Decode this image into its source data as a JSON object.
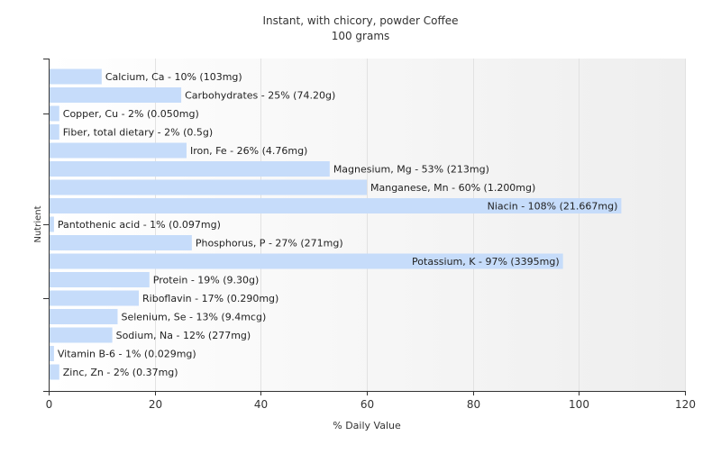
{
  "chart_data": {
    "type": "bar",
    "orientation": "horizontal",
    "title": "Instant, with chicory, powder Coffee",
    "subtitle": "100 grams",
    "xlabel": "% Daily Value",
    "ylabel": "Nutrient",
    "xlim": [
      0,
      120
    ],
    "xticks": [
      "0",
      "20",
      "40",
      "60",
      "80",
      "100",
      "120"
    ],
    "grid": true,
    "bar_color": "#c6dcfa",
    "categories": [
      "Calcium, Ca",
      "Carbohydrates",
      "Copper, Cu",
      "Fiber, total dietary",
      "Iron, Fe",
      "Magnesium, Mg",
      "Manganese, Mn",
      "Niacin",
      "Pantothenic acid",
      "Phosphorus, P",
      "Potassium, K",
      "Protein",
      "Riboflavin",
      "Selenium, Se",
      "Sodium, Na",
      "Vitamin B-6",
      "Zinc, Zn"
    ],
    "values": [
      10,
      25,
      2,
      2,
      26,
      53,
      60,
      108,
      1,
      27,
      97,
      19,
      17,
      13,
      12,
      1,
      2
    ],
    "labels": [
      "Calcium, Ca - 10% (103mg)",
      "Carbohydrates - 25% (74.20g)",
      "Copper, Cu - 2% (0.050mg)",
      "Fiber, total dietary - 2% (0.5g)",
      "Iron, Fe - 26% (4.76mg)",
      "Magnesium, Mg - 53% (213mg)",
      "Manganese, Mn - 60% (1.200mg)",
      "Niacin - 108% (21.667mg)",
      "Pantothenic acid - 1% (0.097mg)",
      "Phosphorus, P - 27% (271mg)",
      "Potassium, K - 97% (3395mg)",
      "Protein - 19% (9.30g)",
      "Riboflavin - 17% (0.290mg)",
      "Selenium, Se - 13% (9.4mcg)",
      "Sodium, Na - 12% (277mg)",
      "Vitamin B-6 - 1% (0.029mg)",
      "Zinc, Zn - 2% (0.37mg)"
    ]
  }
}
